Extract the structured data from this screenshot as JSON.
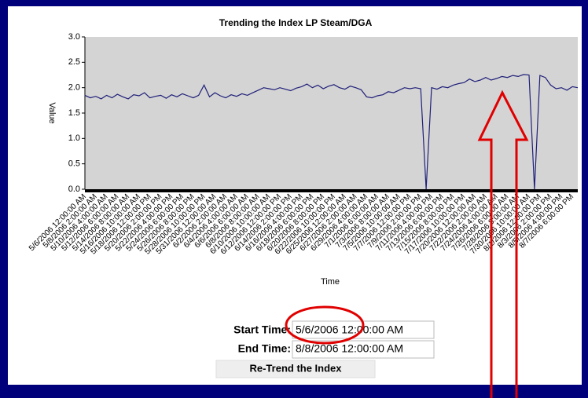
{
  "chart_data": {
    "type": "line",
    "title": "Trending the Index LP Steam/DGA",
    "x_label": "Time",
    "y_label": "Value",
    "categories": [
      "5/6/2006 12:00:00 AM",
      null,
      "5/8/2006 2:00:00 AM",
      null,
      "5/10/2006 4:00:00 AM",
      null,
      "5/12/2006 6:00:00 AM",
      null,
      "5/14/2006 8:00:00 AM",
      null,
      "5/16/2006 10:00:00 AM",
      null,
      "5/18/2006 12:00:00 PM",
      null,
      "5/20/2006 2:00:00 PM",
      null,
      "5/22/2006 4:00:00 PM",
      null,
      "5/24/2006 6:00:00 PM",
      null,
      "5/26/2006 8:00:00 PM",
      null,
      "5/28/2006 10:00:00 PM",
      null,
      "5/31/2006 12:00:00 AM",
      null,
      "6/2/2006 2:00:00 AM",
      null,
      "6/4/2006 4:00:00 AM",
      null,
      "6/6/2006 6:00:00 AM",
      null,
      "6/8/2006 8:00:00 AM",
      null,
      "6/10/2006 10:00:00 AM",
      null,
      "6/12/2006 12:00:00 PM",
      null,
      "6/14/2006 2:00:00 PM",
      null,
      "6/16/2006 4:00:00 PM",
      null,
      "6/18/2006 6:00:00 PM",
      null,
      "6/20/2006 8:00:00 PM",
      null,
      "6/22/2006 10:00:00 PM",
      null,
      "6/25/2006 12:00:00 AM",
      null,
      "6/27/2006 2:00:00 AM",
      null,
      "6/29/2006 4:00:00 AM",
      null,
      "7/1/2006 6:00:00 AM",
      null,
      "7/3/2006 8:00:00 AM",
      null,
      "7/5/2006 10:00:00 AM",
      null,
      "7/7/2006 12:00:00 PM",
      null,
      "7/9/2006 2:00:00 PM",
      null,
      "7/11/2006 4:00:00 PM",
      null,
      "7/13/2006 6:00:00 PM",
      null,
      "7/15/2006 8:00:00 PM",
      null,
      "7/17/2006 10:00:00 PM",
      null,
      "7/20/2006 12:00:00 AM",
      null,
      "7/22/2006 2:00:00 AM",
      null,
      "7/24/2006 4:00:00 AM",
      null,
      "7/26/2006 6:00:00 AM",
      null,
      "7/28/2006 8:00:00 AM",
      null,
      "7/30/2006 10:00:00 AM",
      null,
      "8/1/2006 12:00:00 PM",
      null,
      "8/3/2006 2:00:00 PM",
      null,
      "8/5/2006 4:00:00 PM",
      null,
      "8/7/2006 6:00:00 PM",
      null
    ],
    "values": [
      1.85,
      1.8,
      1.83,
      1.78,
      1.85,
      1.8,
      1.87,
      1.82,
      1.78,
      1.86,
      1.84,
      1.9,
      1.8,
      1.83,
      1.85,
      1.79,
      1.86,
      1.82,
      1.88,
      1.84,
      1.8,
      1.85,
      2.05,
      1.82,
      1.9,
      1.84,
      1.8,
      1.86,
      1.83,
      1.88,
      1.85,
      1.9,
      1.95,
      2.0,
      1.98,
      1.96,
      2.0,
      1.97,
      1.94,
      1.99,
      2.02,
      2.07,
      2.0,
      2.05,
      1.98,
      2.03,
      2.06,
      2.0,
      1.97,
      2.03,
      2.0,
      1.96,
      1.82,
      1.8,
      1.84,
      1.86,
      1.92,
      1.9,
      1.95,
      2.0,
      1.98,
      2.0,
      1.98,
      0,
      2.0,
      1.97,
      2.02,
      2.0,
      2.05,
      2.08,
      2.1,
      2.17,
      2.12,
      2.15,
      2.2,
      2.15,
      2.18,
      2.22,
      2.2,
      2.24,
      2.22,
      2.26,
      2.25,
      0,
      2.24,
      2.2,
      2.05,
      1.98,
      2.0,
      1.95,
      2.02,
      2.0
    ],
    "color": "#1f1f7a",
    "plot_background": "#d4d4d4",
    "ylim": [
      0,
      3
    ],
    "yticks": [
      {
        "value": 0,
        "label": "0.0"
      },
      {
        "value": 0.5,
        "label": "0.5"
      },
      {
        "value": 1,
        "label": "1.0"
      },
      {
        "value": 1.5,
        "label": "1.5"
      },
      {
        "value": 2,
        "label": "2.0"
      },
      {
        "value": 2.5,
        "label": "2.5"
      },
      {
        "value": 3,
        "label": "3.0"
      }
    ]
  },
  "form": {
    "start_label": "Start Time:",
    "start_value": "5/6/2006 12:00:00 AM",
    "end_label": "End Time:",
    "end_value": "8/8/2006 12:00:00 AM",
    "button": "Re-Trend the Index"
  }
}
